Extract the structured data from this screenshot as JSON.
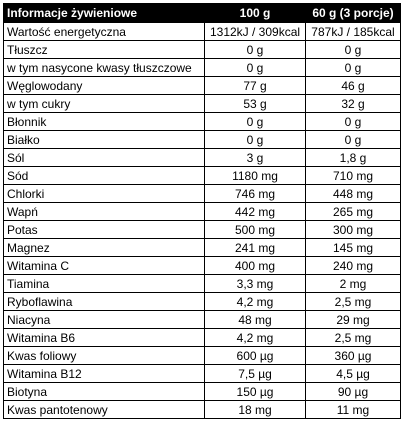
{
  "table": {
    "header": [
      "Informacje żywieniowe",
      "100 g",
      "60 g (3 porcje)"
    ],
    "rows": [
      [
        "Wartość energetyczna",
        "1312kJ / 309kcal",
        "787kJ / 185kcal"
      ],
      [
        "Tłuszcz",
        "0 g",
        "0 g"
      ],
      [
        "w tym nasycone kwasy tłuszczowe",
        "0 g",
        "0 g"
      ],
      [
        "Węglowodany",
        "77 g",
        "46 g"
      ],
      [
        "w tym cukry",
        "53 g",
        "32 g"
      ],
      [
        "Błonnik",
        "0 g",
        "0 g"
      ],
      [
        "Białko",
        "0 g",
        "0 g"
      ],
      [
        "Sól",
        "3 g",
        "1,8 g"
      ],
      [
        "Sód",
        "1180 mg",
        "710 mg"
      ],
      [
        "Chlorki",
        "746 mg",
        "448 mg"
      ],
      [
        "Wapń",
        "442 mg",
        "265 mg"
      ],
      [
        "Potas",
        "500 mg",
        "300 mg"
      ],
      [
        "Magnez",
        "241 mg",
        "145 mg"
      ],
      [
        "Witamina C",
        "400 mg",
        "240 mg"
      ],
      [
        "Tiamina",
        "3,3 mg",
        "2 mg"
      ],
      [
        "Ryboflawina",
        "4,2 mg",
        "2,5 mg"
      ],
      [
        "Niacyna",
        "48 mg",
        "29 mg"
      ],
      [
        "Witamina B6",
        "4,2 mg",
        "2,5 mg"
      ],
      [
        "Kwas foliowy",
        "600 µg",
        "360 µg"
      ],
      [
        "Witamina B12",
        "7,5 µg",
        "4,5 µg"
      ],
      [
        "Biotyna",
        "150 µg",
        "90 µg"
      ],
      [
        "Kwas pantotenowy",
        "18 mg",
        "11 mg"
      ]
    ]
  }
}
